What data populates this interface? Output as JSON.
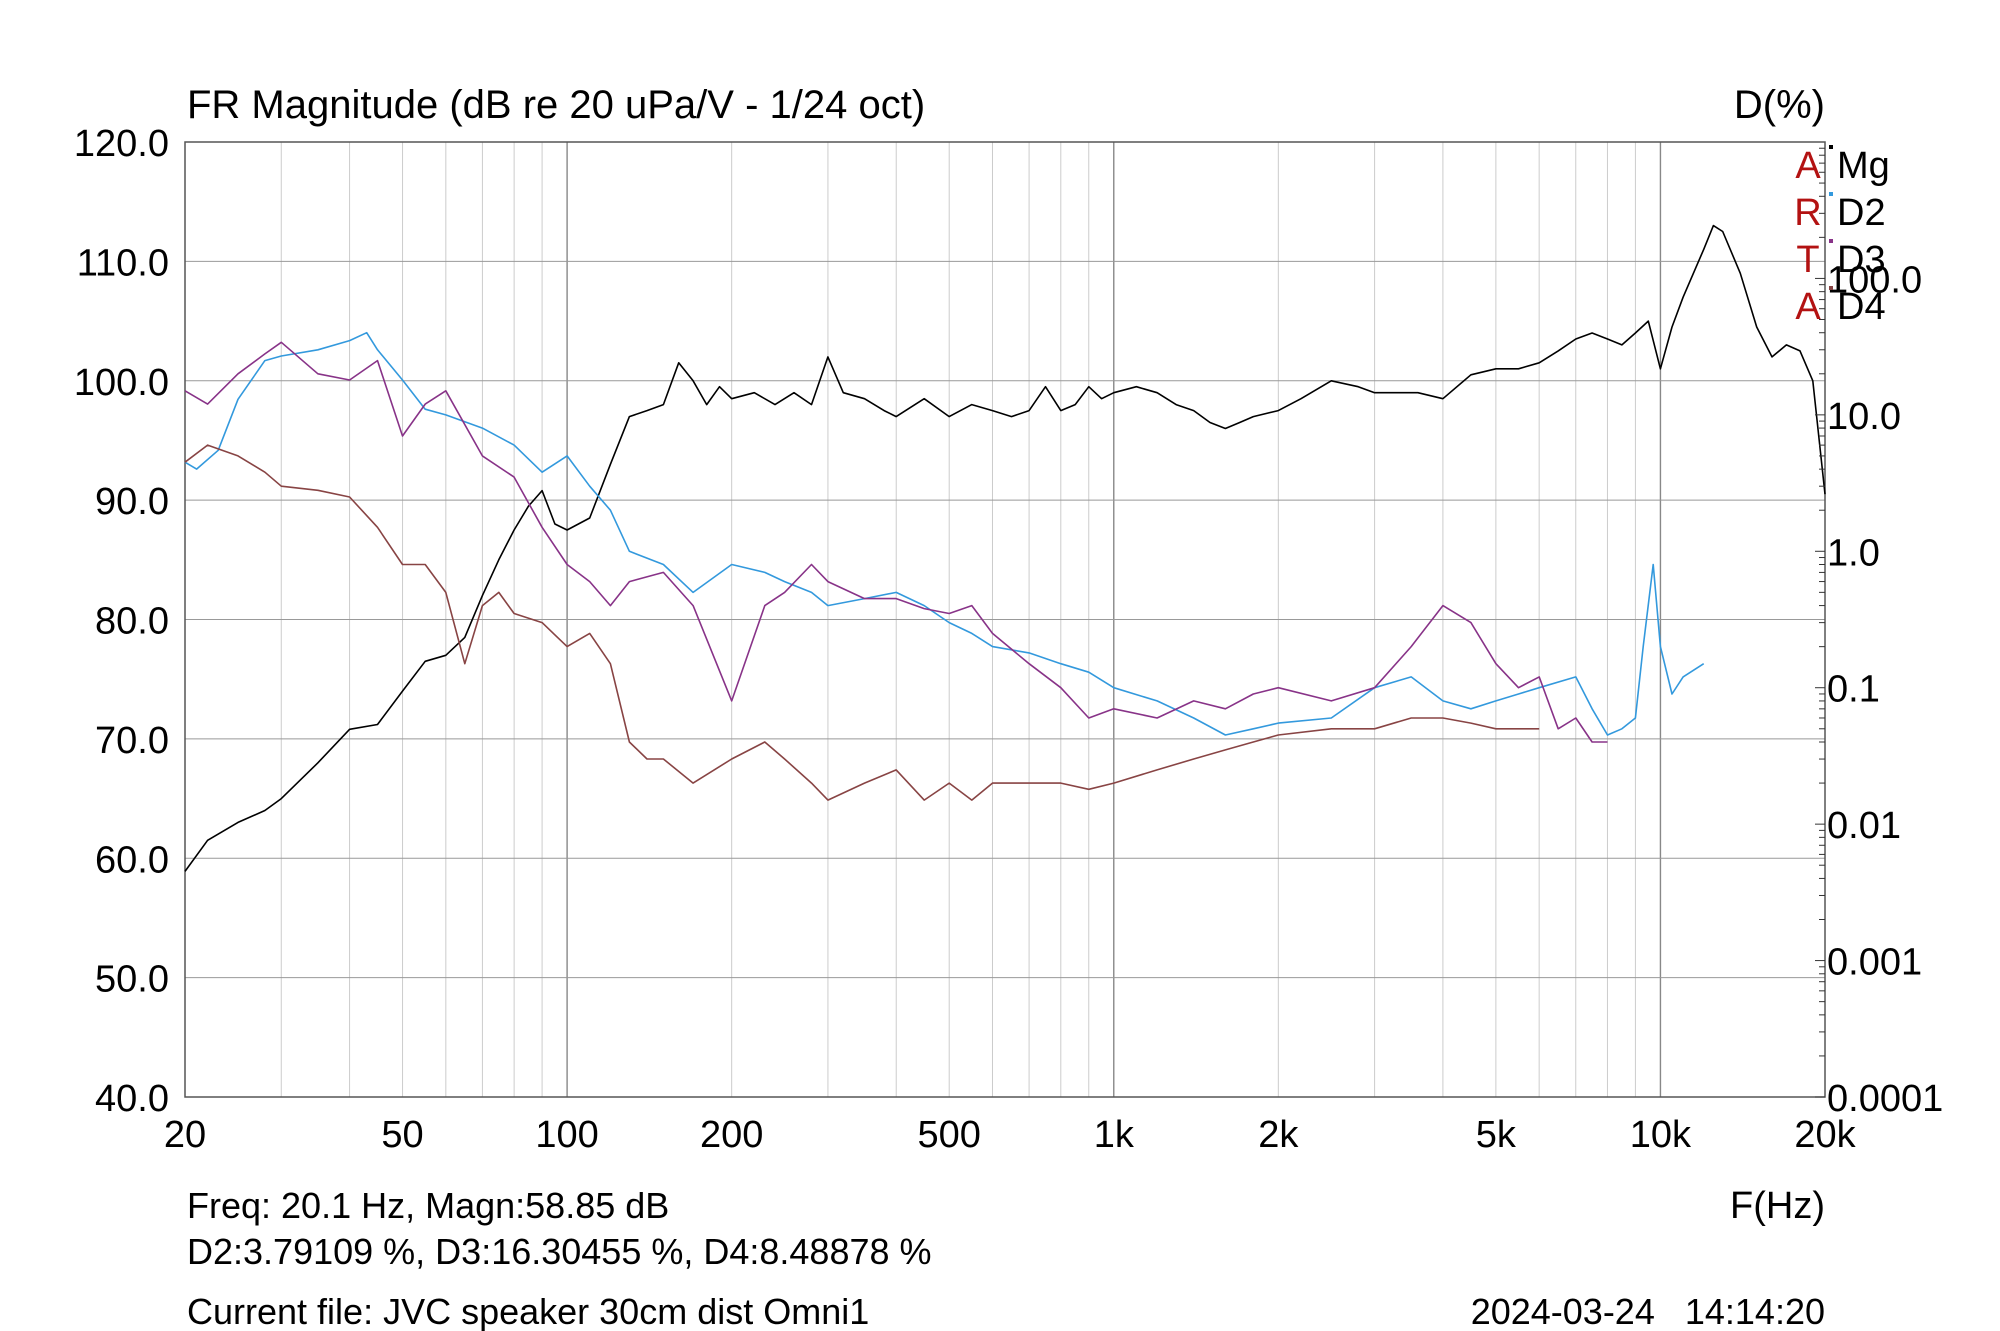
{
  "chart_data": {
    "type": "line",
    "title": "FR Magnitude (dB re 20 uPa/V - 1/24 oct)",
    "right_axis_label": "D(%)",
    "xlabel": "F(Hz)",
    "x_scale": "log",
    "xlim": [
      20,
      20000
    ],
    "ylim": [
      40,
      120
    ],
    "y2_scale": "log",
    "y2lim": [
      0.0001,
      1000
    ],
    "x_ticks": [
      {
        "value": 20,
        "label": "20"
      },
      {
        "value": 50,
        "label": "50"
      },
      {
        "value": 100,
        "label": "100"
      },
      {
        "value": 200,
        "label": "200"
      },
      {
        "value": 500,
        "label": "500"
      },
      {
        "value": 1000,
        "label": "1k"
      },
      {
        "value": 2000,
        "label": "2k"
      },
      {
        "value": 5000,
        "label": "5k"
      },
      {
        "value": 10000,
        "label": "10k"
      },
      {
        "value": 20000,
        "label": "20k"
      }
    ],
    "y_ticks": [
      {
        "value": 120,
        "label": "120.0"
      },
      {
        "value": 110,
        "label": "110.0"
      },
      {
        "value": 100,
        "label": "100.0"
      },
      {
        "value": 90,
        "label": "90.0"
      },
      {
        "value": 80,
        "label": "80.0"
      },
      {
        "value": 70,
        "label": "70.0"
      },
      {
        "value": 60,
        "label": "60.0"
      },
      {
        "value": 50,
        "label": "50.0"
      },
      {
        "value": 40,
        "label": "40.0"
      }
    ],
    "y2_ticks": [
      {
        "value": 100,
        "label": "100.0"
      },
      {
        "value": 10,
        "label": "10.0"
      },
      {
        "value": 1,
        "label": "1.0"
      },
      {
        "value": 0.1,
        "label": "0.1"
      },
      {
        "value": 0.01,
        "label": "0.01"
      },
      {
        "value": 0.001,
        "label": "0.001"
      },
      {
        "value": 0.0001,
        "label": "0.0001"
      }
    ],
    "grid": true,
    "legend_position": "top-right",
    "series": [
      {
        "name": "Mg",
        "axis": "left",
        "color": "#000000",
        "x": [
          20,
          22,
          25,
          28,
          30,
          35,
          40,
          45,
          50,
          55,
          60,
          65,
          70,
          75,
          80,
          85,
          90,
          95,
          100,
          110,
          120,
          130,
          140,
          150,
          160,
          170,
          180,
          190,
          200,
          220,
          240,
          260,
          280,
          300,
          320,
          350,
          380,
          400,
          450,
          500,
          550,
          600,
          650,
          700,
          750,
          800,
          850,
          900,
          950,
          1000,
          1100,
          1200,
          1300,
          1400,
          1500,
          1600,
          1700,
          1800,
          2000,
          2200,
          2500,
          2800,
          3000,
          3300,
          3600,
          4000,
          4500,
          5000,
          5500,
          6000,
          6500,
          7000,
          7500,
          8000,
          8500,
          9000,
          9500,
          10000,
          10500,
          11000,
          12000,
          12500,
          13000,
          14000,
          15000,
          16000,
          17000,
          18000,
          19000,
          20000
        ],
        "y": [
          58.9,
          61.5,
          63.0,
          64.0,
          65.0,
          68.0,
          70.8,
          71.2,
          74.0,
          76.5,
          77.0,
          78.5,
          82.0,
          85.0,
          87.5,
          89.5,
          90.8,
          88.0,
          87.5,
          88.5,
          93.0,
          97.0,
          97.5,
          98.0,
          101.5,
          100.0,
          98.0,
          99.5,
          98.5,
          99.0,
          98.0,
          99.0,
          98.0,
          102.0,
          99.0,
          98.5,
          97.5,
          97.0,
          98.5,
          97.0,
          98.0,
          97.5,
          97.0,
          97.5,
          99.5,
          97.5,
          98.0,
          99.5,
          98.5,
          99.0,
          99.5,
          99.0,
          98.0,
          97.5,
          96.5,
          96.0,
          96.5,
          97.0,
          97.5,
          98.5,
          100.0,
          99.5,
          99.0,
          99.0,
          99.0,
          98.5,
          100.5,
          101.0,
          101.0,
          101.5,
          102.5,
          103.5,
          104.0,
          103.5,
          103.0,
          104.0,
          105.0,
          101.0,
          104.5,
          107.0,
          111.0,
          113.0,
          112.5,
          109.0,
          104.5,
          102.0,
          103.0,
          102.5,
          100.0,
          90.5
        ]
      },
      {
        "name": "D2",
        "axis": "right",
        "color": "#3399dd",
        "x": [
          20,
          21,
          23,
          25,
          28,
          30,
          35,
          40,
          43,
          45,
          50,
          55,
          60,
          70,
          80,
          90,
          100,
          110,
          120,
          130,
          150,
          170,
          200,
          230,
          250,
          280,
          300,
          350,
          400,
          450,
          500,
          550,
          600,
          700,
          800,
          900,
          1000,
          1200,
          1400,
          1600,
          1800,
          2000,
          2500,
          3000,
          3500,
          4000,
          4500,
          5000,
          5500,
          6000,
          7000,
          7500,
          8000,
          8500,
          9000,
          9300,
          9700,
          10000,
          10500,
          11000,
          12000
        ],
        "y": [
          4.5,
          4.0,
          5.5,
          13.0,
          25.0,
          27.0,
          30.0,
          35.0,
          40.0,
          30.0,
          18.0,
          11.0,
          10.0,
          8.0,
          6.0,
          3.8,
          5.0,
          3.0,
          2.0,
          1.0,
          0.8,
          0.5,
          0.8,
          0.7,
          0.6,
          0.5,
          0.4,
          0.45,
          0.5,
          0.4,
          0.3,
          0.25,
          0.2,
          0.18,
          0.15,
          0.13,
          0.1,
          0.08,
          0.06,
          0.045,
          0.05,
          0.055,
          0.06,
          0.1,
          0.12,
          0.08,
          0.07,
          0.08,
          0.09,
          0.1,
          0.12,
          0.07,
          0.045,
          0.05,
          0.06,
          0.2,
          0.8,
          0.2,
          0.09,
          0.12,
          0.15
        ]
      },
      {
        "name": "D3",
        "axis": "right",
        "color": "#883388",
        "x": [
          20,
          22,
          25,
          28,
          30,
          35,
          40,
          45,
          50,
          55,
          60,
          70,
          80,
          90,
          100,
          110,
          120,
          130,
          150,
          170,
          200,
          230,
          250,
          280,
          300,
          350,
          400,
          450,
          500,
          550,
          600,
          700,
          800,
          900,
          1000,
          1200,
          1400,
          1600,
          1800,
          2000,
          2500,
          3000,
          3500,
          4000,
          4500,
          5000,
          5500,
          6000,
          6500,
          7000,
          7500,
          8000
        ],
        "y": [
          15.0,
          12.0,
          20.0,
          28.0,
          34.0,
          20.0,
          18.0,
          25.0,
          7.0,
          12.0,
          15.0,
          5.0,
          3.5,
          1.5,
          0.8,
          0.6,
          0.4,
          0.6,
          0.7,
          0.4,
          0.08,
          0.4,
          0.5,
          0.8,
          0.6,
          0.45,
          0.45,
          0.38,
          0.35,
          0.4,
          0.25,
          0.15,
          0.1,
          0.06,
          0.07,
          0.06,
          0.08,
          0.07,
          0.09,
          0.1,
          0.08,
          0.1,
          0.2,
          0.4,
          0.3,
          0.15,
          0.1,
          0.12,
          0.05,
          0.06,
          0.04,
          0.04
        ]
      },
      {
        "name": "D4",
        "axis": "right",
        "color": "#884444",
        "x": [
          20,
          22,
          25,
          28,
          30,
          35,
          40,
          45,
          50,
          55,
          60,
          65,
          70,
          75,
          80,
          90,
          100,
          110,
          120,
          130,
          140,
          150,
          170,
          200,
          230,
          250,
          280,
          300,
          350,
          400,
          450,
          500,
          550,
          600,
          700,
          800,
          900,
          1000,
          1200,
          1400,
          1600,
          1800,
          2000,
          2500,
          3000,
          3500,
          4000,
          4500,
          5000,
          5500,
          6000
        ],
        "y": [
          4.5,
          6.0,
          5.0,
          3.8,
          3.0,
          2.8,
          2.5,
          1.5,
          0.8,
          0.8,
          0.5,
          0.15,
          0.4,
          0.5,
          0.35,
          0.3,
          0.2,
          0.25,
          0.15,
          0.04,
          0.03,
          0.03,
          0.02,
          0.03,
          0.04,
          0.03,
          0.02,
          0.015,
          0.02,
          0.025,
          0.015,
          0.02,
          0.015,
          0.02,
          0.02,
          0.02,
          0.018,
          0.02,
          0.025,
          0.03,
          0.035,
          0.04,
          0.045,
          0.05,
          0.05,
          0.06,
          0.06,
          0.055,
          0.05,
          0.05,
          0.05
        ]
      }
    ],
    "legend_side_letters": [
      "A",
      "R",
      "T",
      "A"
    ],
    "cursor_readout": {
      "line1": "Freq: 20.1 Hz, Magn:58.85 dB",
      "line2": "D2:3.79109 %, D3:16.30455 %, D4:8.48878 %"
    },
    "footer": {
      "current_file": "Current file: JVC speaker 30cm dist Omni1",
      "timestamp": "2024-03-24   14:14:20"
    }
  }
}
